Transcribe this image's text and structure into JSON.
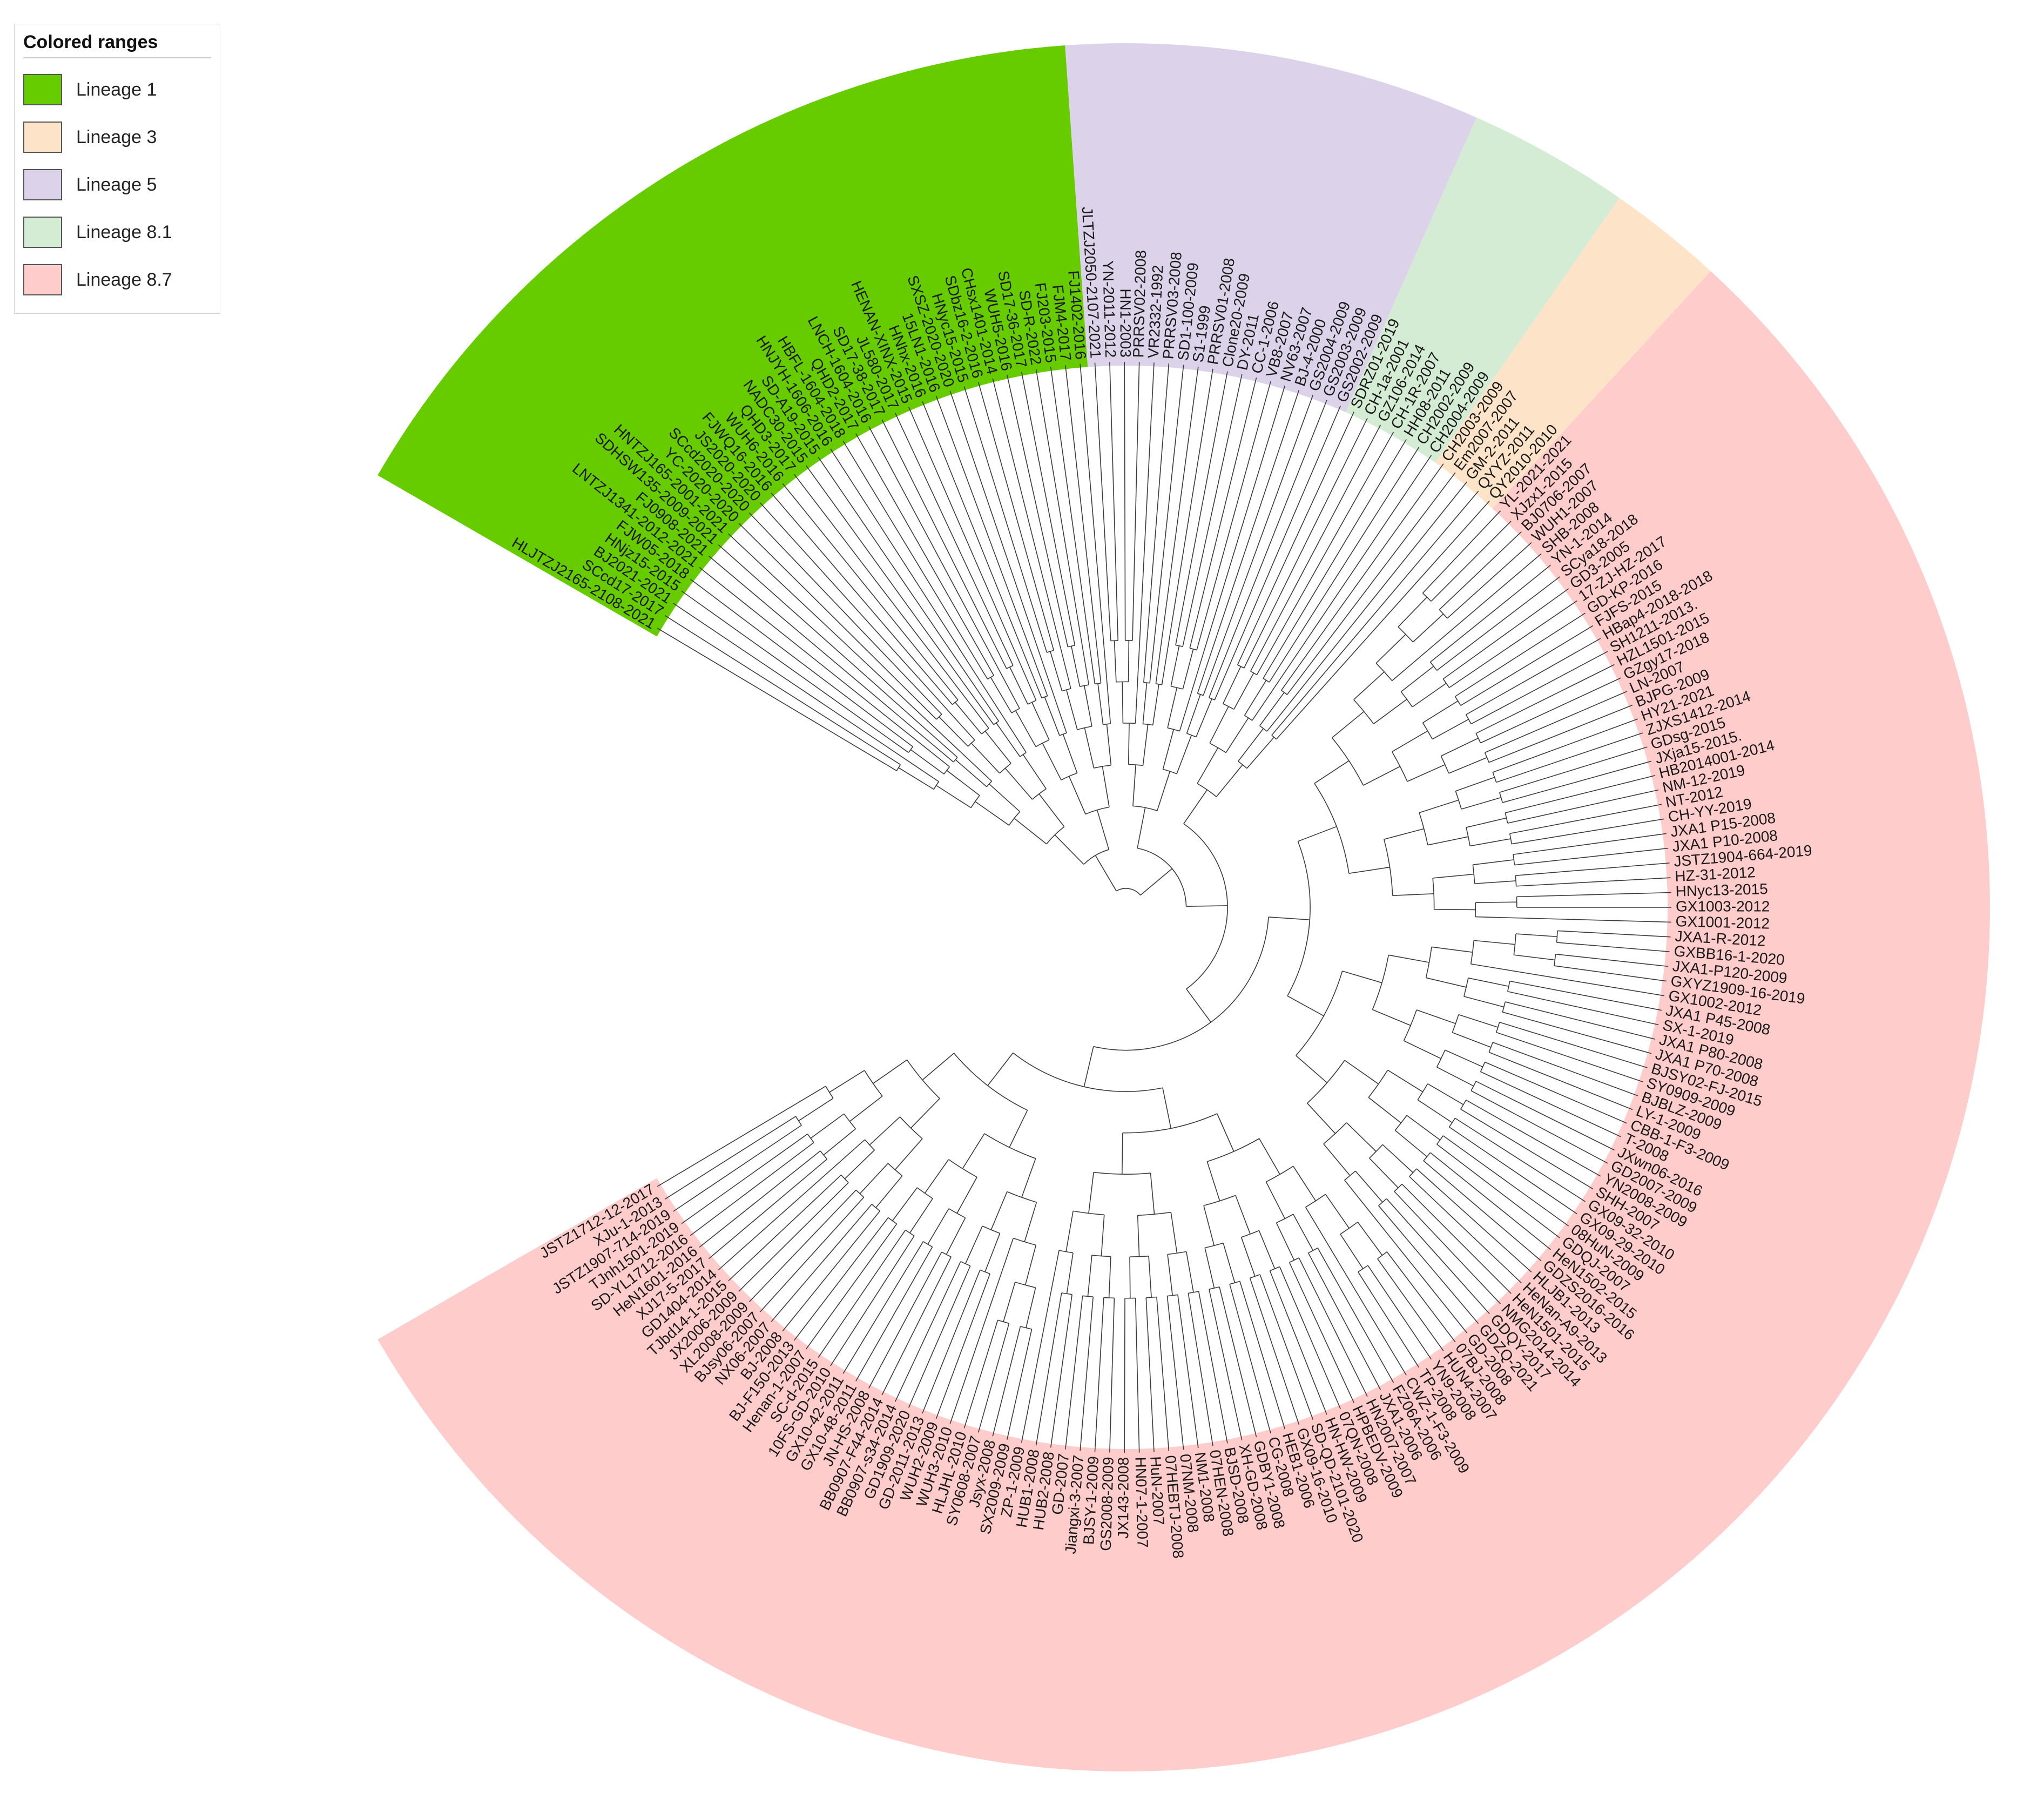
{
  "legend": {
    "title": "Colored ranges",
    "items": [
      {
        "label": "Lineage 1",
        "color": "#66cc00"
      },
      {
        "label": "Lineage 3",
        "color": "#fde3c8"
      },
      {
        "label": "Lineage 5",
        "color": "#dcd3ea"
      },
      {
        "label": "Lineage 8.1",
        "color": "#d4ebd4"
      },
      {
        "label": "Lineage 8.7",
        "color": "#ffcccc"
      }
    ]
  },
  "lineages": [
    {
      "name": "Lineage 1",
      "color": "#66cc00",
      "leaves": [
        "HLJTZJ2165-2108-2021",
        "SCcd17-2017",
        "BJ2021-2021",
        "HNjz15-2015",
        "FJW05-2018",
        "LNTZJ1341-2012-2021",
        "FJ0908-2021",
        "SDHSW135-2009-2021",
        "HNTZJ165-2001-2021",
        "YC-2020-2020",
        "SCcd2020-2020",
        "JS2020-2020",
        "FJWQ16-2016",
        "WUH6-2016",
        "QHD3-2017",
        "NADC30-2015",
        "SD-A19-2015",
        "HNJYH-1606-2016",
        "HBFL-1604-2018",
        "QHD2-2017",
        "LNCH-1604-2016",
        "SD17-38-2017",
        "JL580-2017",
        "HENAN-XINX-2015",
        "HNhx-2016",
        "15LN1-2016",
        "SXSZ-2020-2020",
        "HNyc15-2015",
        "SDbz16-2-2016",
        "CHsx1401-2014",
        "WUH5-2016",
        "SD17-36-2017",
        "SD-R-2022",
        "FJ203-2015",
        "FJM4-2017",
        "FJ1402-2016"
      ]
    },
    {
      "name": "Lineage 5",
      "color": "#dcd3ea",
      "leaves": [
        "JLTZJ2050-2107-2021",
        "YN-2011-2012",
        "HN1-2003",
        "PRRSV02-2008",
        "VR2332-1992",
        "PRRSV03-2008",
        "SD1-100-2009",
        "S1-1999",
        "PRRSV01-2008",
        "Clone20-2009",
        "DY-2011",
        "CC-1-2006",
        "VB8-2007",
        "NV63-2007",
        "BJ-4-2000",
        "GS2004-2009",
        "GS2003-2009",
        "GS2002-2009"
      ]
    },
    {
      "name": "Lineage 8.1",
      "color": "#d4ebd4",
      "leaves": [
        "SDRZ01-2019",
        "CH-1a-2001",
        "GZ106-2014",
        "CH-1R-2007",
        "HH08-2011",
        "CH2002-2009",
        "CH2004-2009"
      ]
    },
    {
      "name": "Lineage 3",
      "color": "#fde3c8",
      "leaves": [
        "CH2003-2009",
        "Em2007-2007",
        "GM-2-2011",
        "QYYZ-2011",
        "QY2010-2010"
      ]
    },
    {
      "name": "Lineage 8.7",
      "color": "#ffcccc",
      "leaves": [
        "YL-2021-2021",
        "XJzx1-2015",
        "BJ0706-2007",
        "WUH1-2007",
        "SHB-2008",
        "YN-1-2014",
        "SCya18-2018",
        "GD3-2005",
        "17-ZJ-HZ-2017",
        "GD-KP-2016",
        "FJFS-2015",
        "HBap4-2018-2018",
        "SH1211-2013.",
        "HZL1501-2015",
        "GZgy17-2018",
        "LN-2007",
        "BJPG-2009",
        "HY21-2021",
        "ZJXS1412-2014",
        "GDsg-2015",
        "JXja15-2015.",
        "HB2014001-2014",
        "NM-12-2019",
        "NT-2012",
        "CH-YY-2019",
        "JXA1 P15-2008",
        "JXA1 P10-2008",
        "JSTZ1904-664-2019",
        "HZ-31-2012",
        "HNyc13-2015",
        "GX1003-2012",
        "GX1001-2012",
        "JXA1-R-2012",
        "GXBB16-1-2020",
        "JXA1-P120-2009",
        "GXYZ1909-16-2019",
        "GX1002-2012",
        "JXA1 P45-2008",
        "SX-1-2019",
        "JXA1 P80-2008",
        "JXA1 P70-2008",
        "BJSY02-FJ-2015",
        "SY0909-2009",
        "BJBLZ-2009",
        "LY-1-2009",
        "CBB-1-F3-2009",
        "T-2008",
        "JXwn06-2016",
        "GD2007-2009",
        "YN2008-2009",
        "SHH-2007",
        "GX09-32-2010",
        "GX09-29-2010",
        "08HuN-2009",
        "GDQJ-2007",
        "HeN1502-2015",
        "GDZS2016-2016",
        "HLJB1-2013",
        "HeNan-A9-2013",
        "HeN1501-2015",
        "NMG2014-2014",
        "GDQY-2017",
        "GDZQ-2021",
        "GD-2008",
        "07BJ-2008",
        "HUN4-2007",
        "YN9-2008",
        "TP-2008",
        "CWZ-1-F3-2009",
        "FZ06A-2006",
        "JXA1-2006",
        "HN2007-2007",
        "HPBEDV-2009",
        "07QN-2008",
        "HN-HW-2009",
        "SD-QD-2101-2020",
        "GX09-16-2010",
        "HEB1-2006",
        "CG-2008",
        "GDBY1-2008",
        "XH-GD-2008",
        "BJSD-2008",
        "07HEN-2008",
        "NM1-2008",
        "07NM-2008",
        "07HEBTJ-2008",
        "HuN-2007",
        "HN07-1-2007",
        "JX143-2008",
        "GS2008-2009",
        "BJSY-1-2009",
        "Jiangxi-3-2007",
        "GD-2007",
        "HUB2-2008",
        "HUB1-2008",
        "ZP-1-2009",
        "SX2009-2009",
        "Jsyx-2008",
        "SY0608-2007",
        "HLJHL-2010",
        "WUH3-2010",
        "WUH2-2009",
        "GD-2011-2013",
        "GD1909-2020",
        "BB0907-s34-2014",
        "BB0907-F44-2014",
        "JN-HS-2008",
        "GX10-48-2011",
        "GX10-42-2011",
        "10FS-GD-2010",
        "SC-d-2015",
        "Henan-1-2007",
        "BJ-F150-2013",
        "BJ-2008",
        "NX06-2007",
        "BJsy06-2007",
        "XL2008-2009",
        "JX2006-2009",
        "TJbd14-1-2015",
        "GD1404-2014",
        "XJ17-5-2017",
        "HeN1601-2016",
        "SD-YL1712-2016",
        "TJnh1501-2019",
        "JSTZ1907-714-2019",
        "XJu-1-2013",
        "JSTZ1712-12-2017"
      ]
    }
  ]
}
